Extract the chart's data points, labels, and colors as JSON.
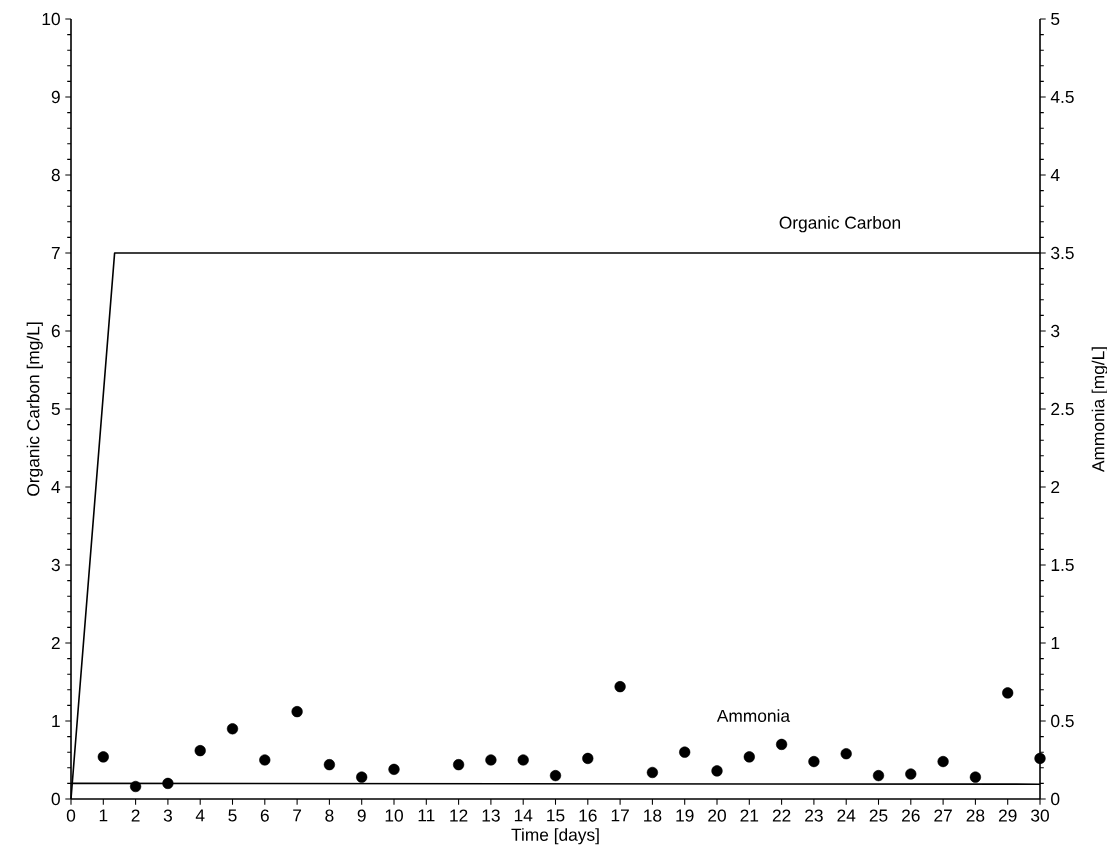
{
  "chart_data": {
    "type": "line",
    "xlabel": "Time [days]",
    "ylabel": "Organic Carbon [mg/L]",
    "y2label": "Ammonia [mg/L]",
    "xlim": [
      0,
      30
    ],
    "xticks": [
      0,
      1,
      2,
      3,
      4,
      5,
      6,
      7,
      8,
      9,
      10,
      11,
      12,
      13,
      14,
      15,
      16,
      17,
      18,
      19,
      20,
      21,
      22,
      23,
      24,
      25,
      26,
      27,
      28,
      29,
      30
    ],
    "ylim": [
      0,
      10
    ],
    "yticks": [
      0,
      1,
      2,
      3,
      4,
      5,
      6,
      7,
      8,
      9,
      10
    ],
    "y2lim": [
      0,
      5
    ],
    "y2ticks": [
      0,
      0.5,
      1,
      1.5,
      2,
      2.5,
      3,
      3.5,
      4,
      4.5,
      5
    ],
    "grid": false,
    "series": [
      {
        "name": "Organic Carbon",
        "marker": "none",
        "color": "#000000",
        "line_style": "solid",
        "x": [
          0,
          1.35,
          30
        ],
        "values": [
          0,
          7,
          7
        ]
      },
      {
        "type": "line",
        "axis": "y2",
        "marker": "none",
        "color": "#000000",
        "line_style": "solid",
        "x": [
          0,
          30
        ],
        "values": [
          0.1,
          0.095
        ]
      },
      {
        "name": "Ammonia",
        "type": "scatter",
        "axis": "y2",
        "marker": "circle",
        "color": "#000000",
        "x": [
          1,
          2,
          3,
          4,
          5,
          6,
          7,
          8,
          9,
          10,
          12,
          13,
          14,
          15,
          16,
          17,
          18,
          19,
          20,
          21,
          22,
          23,
          24,
          25,
          26,
          27,
          28,
          29,
          30
        ],
        "values": [
          0.27,
          0.08,
          0.1,
          0.31,
          0.45,
          0.25,
          0.56,
          0.22,
          0.14,
          0.19,
          0.22,
          0.25,
          0.25,
          0.15,
          0.26,
          0.72,
          0.17,
          0.3,
          0.18,
          0.27,
          0.35,
          0.24,
          0.29,
          0.15,
          0.16,
          0.24,
          0.14,
          0.68,
          0.26
        ]
      }
    ]
  }
}
